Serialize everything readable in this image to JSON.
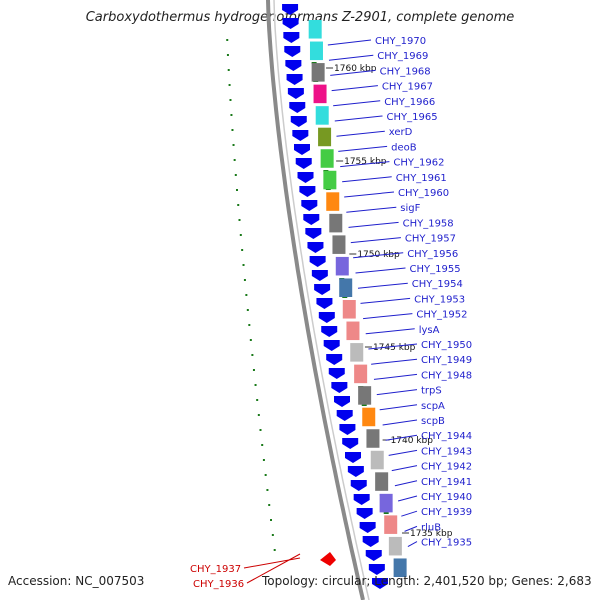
{
  "title": "Carboxydothermus hydrogenoformans Z-2901, complete genome",
  "footer": {
    "accession": "Accession: NC_007503",
    "summary": "Topology: circular; Length: 2,401,520 bp; Genes: 2,683"
  },
  "colors": {
    "feature_label": "#1f1fcc",
    "highlight_label": "#cc0000",
    "cds_arrow": "#0000ee",
    "gc_tick": "#1a7a1a",
    "backbone": "#8a8a8a"
  },
  "kbp_markers": [
    "1760 kbp",
    "1755 kbp",
    "1750 kbp",
    "1745 kbp",
    "1740 kbp",
    "1735 kbp"
  ],
  "gene_labels": [
    {
      "text": "CHY_1970",
      "highlight": false
    },
    {
      "text": "CHY_1969",
      "highlight": false
    },
    {
      "text": "CHY_1968",
      "highlight": false
    },
    {
      "text": "CHY_1967",
      "highlight": false
    },
    {
      "text": "CHY_1966",
      "highlight": false
    },
    {
      "text": "CHY_1965",
      "highlight": false
    },
    {
      "text": "xerD",
      "highlight": false
    },
    {
      "text": "deoB",
      "highlight": false
    },
    {
      "text": "CHY_1962",
      "highlight": false
    },
    {
      "text": "CHY_1961",
      "highlight": false
    },
    {
      "text": "CHY_1960",
      "highlight": false
    },
    {
      "text": "sigF",
      "highlight": false
    },
    {
      "text": "CHY_1958",
      "highlight": false
    },
    {
      "text": "CHY_1957",
      "highlight": false
    },
    {
      "text": "CHY_1956",
      "highlight": false
    },
    {
      "text": "CHY_1955",
      "highlight": false
    },
    {
      "text": "CHY_1954",
      "highlight": false
    },
    {
      "text": "CHY_1953",
      "highlight": false
    },
    {
      "text": "CHY_1952",
      "highlight": false
    },
    {
      "text": "lysA",
      "highlight": false
    },
    {
      "text": "CHY_1950",
      "highlight": false
    },
    {
      "text": "CHY_1949",
      "highlight": false
    },
    {
      "text": "CHY_1948",
      "highlight": false
    },
    {
      "text": "trpS",
      "highlight": false
    },
    {
      "text": "scpA",
      "highlight": false
    },
    {
      "text": "scpB",
      "highlight": false
    },
    {
      "text": "CHY_1944",
      "highlight": false
    },
    {
      "text": "CHY_1943",
      "highlight": false
    },
    {
      "text": "CHY_1942",
      "highlight": false
    },
    {
      "text": "CHY_1941",
      "highlight": false
    },
    {
      "text": "CHY_1940",
      "highlight": false
    },
    {
      "text": "CHY_1939",
      "highlight": false
    },
    {
      "text": "rluB",
      "highlight": false
    },
    {
      "text": "CHY_1935",
      "highlight": false
    },
    {
      "text": "CHY_1937",
      "highlight": true
    },
    {
      "text": "CHY_1936",
      "highlight": true
    }
  ],
  "cog_blocks": [
    "cyan",
    "cyan",
    "gray",
    "magenta",
    "cyan",
    "olive",
    "green",
    "green",
    "orange",
    "gray",
    "gray",
    "violet",
    "steelblue",
    "salmon",
    "salmon",
    "silver",
    "salmon",
    "gray",
    "orange",
    "gray",
    "silver",
    "gray",
    "violet",
    "salmon",
    "silver",
    "steelblue"
  ]
}
